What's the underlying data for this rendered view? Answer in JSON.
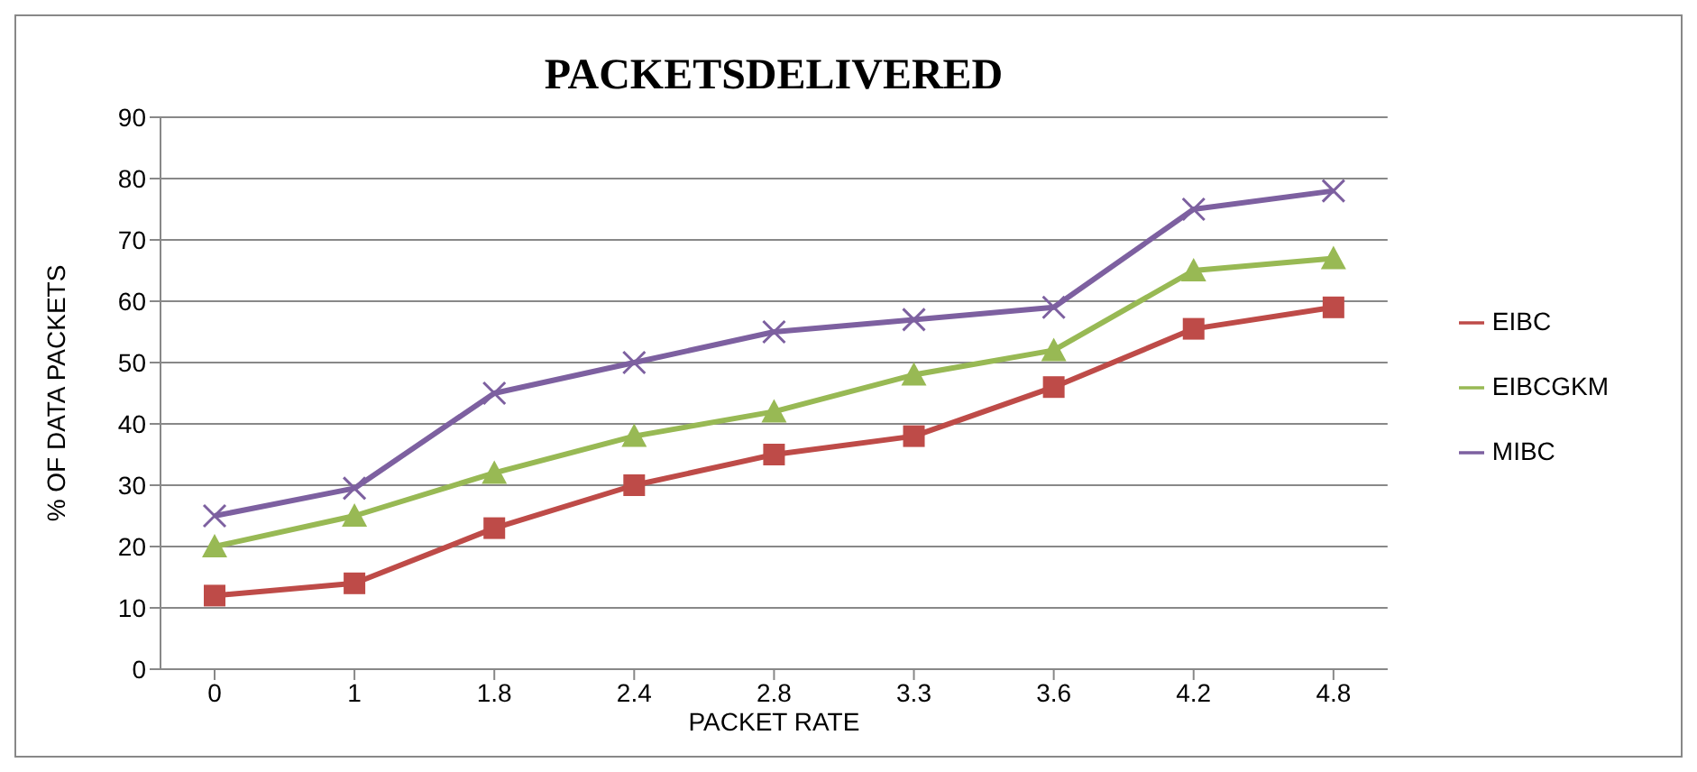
{
  "chart_data": {
    "type": "line",
    "title": "PACKETSDELIVERED",
    "xlabel": "PACKET RATE",
    "ylabel": "% OF DATA PACKETS",
    "categories": [
      "0",
      "1",
      "1.8",
      "2.4",
      "2.8",
      "3.3",
      "3.6",
      "4.2",
      "4.8"
    ],
    "series": [
      {
        "name": "EIBC",
        "color": "#be4b48",
        "marker": "square",
        "values": [
          12,
          14,
          23,
          30,
          35,
          38,
          46,
          55.5,
          59
        ]
      },
      {
        "name": "EIBCGKM",
        "color": "#98b954",
        "marker": "triangle",
        "values": [
          20,
          25,
          32,
          38,
          42,
          48,
          52,
          65,
          67
        ]
      },
      {
        "name": "MIBC",
        "color": "#7d60a0",
        "marker": "cross",
        "values": [
          25,
          29.5,
          45,
          50,
          55,
          57,
          59,
          75,
          78
        ]
      }
    ],
    "ylim": [
      0,
      90
    ],
    "yticks": [
      0,
      10,
      20,
      30,
      40,
      50,
      60,
      70,
      80,
      90
    ],
    "grid": "y",
    "legend": "right",
    "line_style": "solid"
  }
}
